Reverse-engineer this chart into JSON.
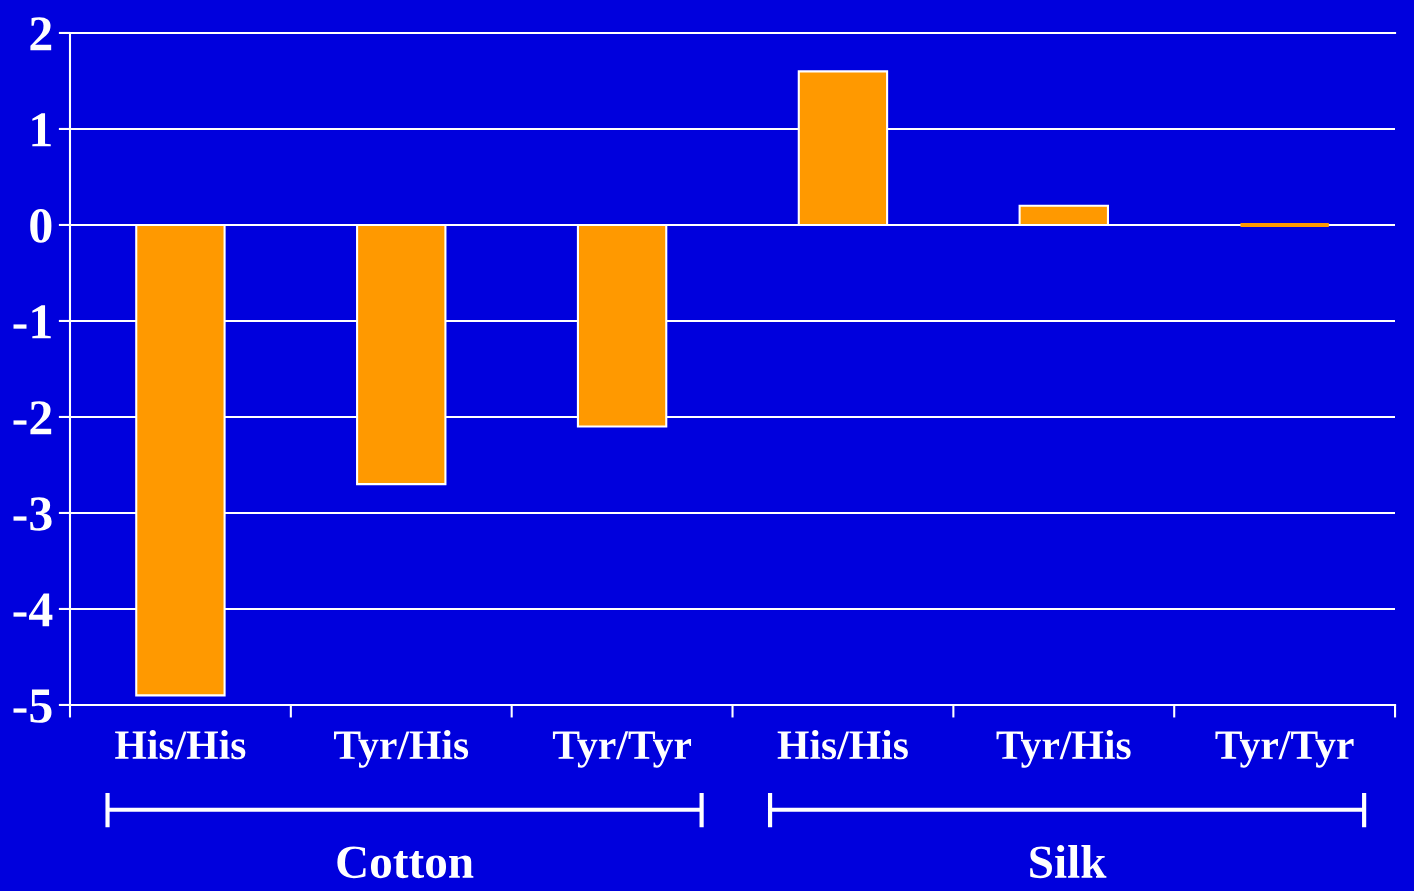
{
  "chart_data": {
    "type": "bar",
    "categories": [
      "His/His",
      "Tyr/His",
      "Tyr/Tyr",
      "His/His",
      "Tyr/His",
      "Tyr/Tyr"
    ],
    "values": [
      -4.9,
      -2.7,
      -2.1,
      1.6,
      0.2,
      0
    ],
    "color": "#ff9900",
    "ylim": [
      -5,
      2
    ],
    "yticks": [
      -5,
      -4,
      -3,
      -2,
      -1,
      0,
      1,
      2
    ],
    "grid": "y",
    "annotations": [
      "Cotton",
      "Silk"
    ]
  }
}
